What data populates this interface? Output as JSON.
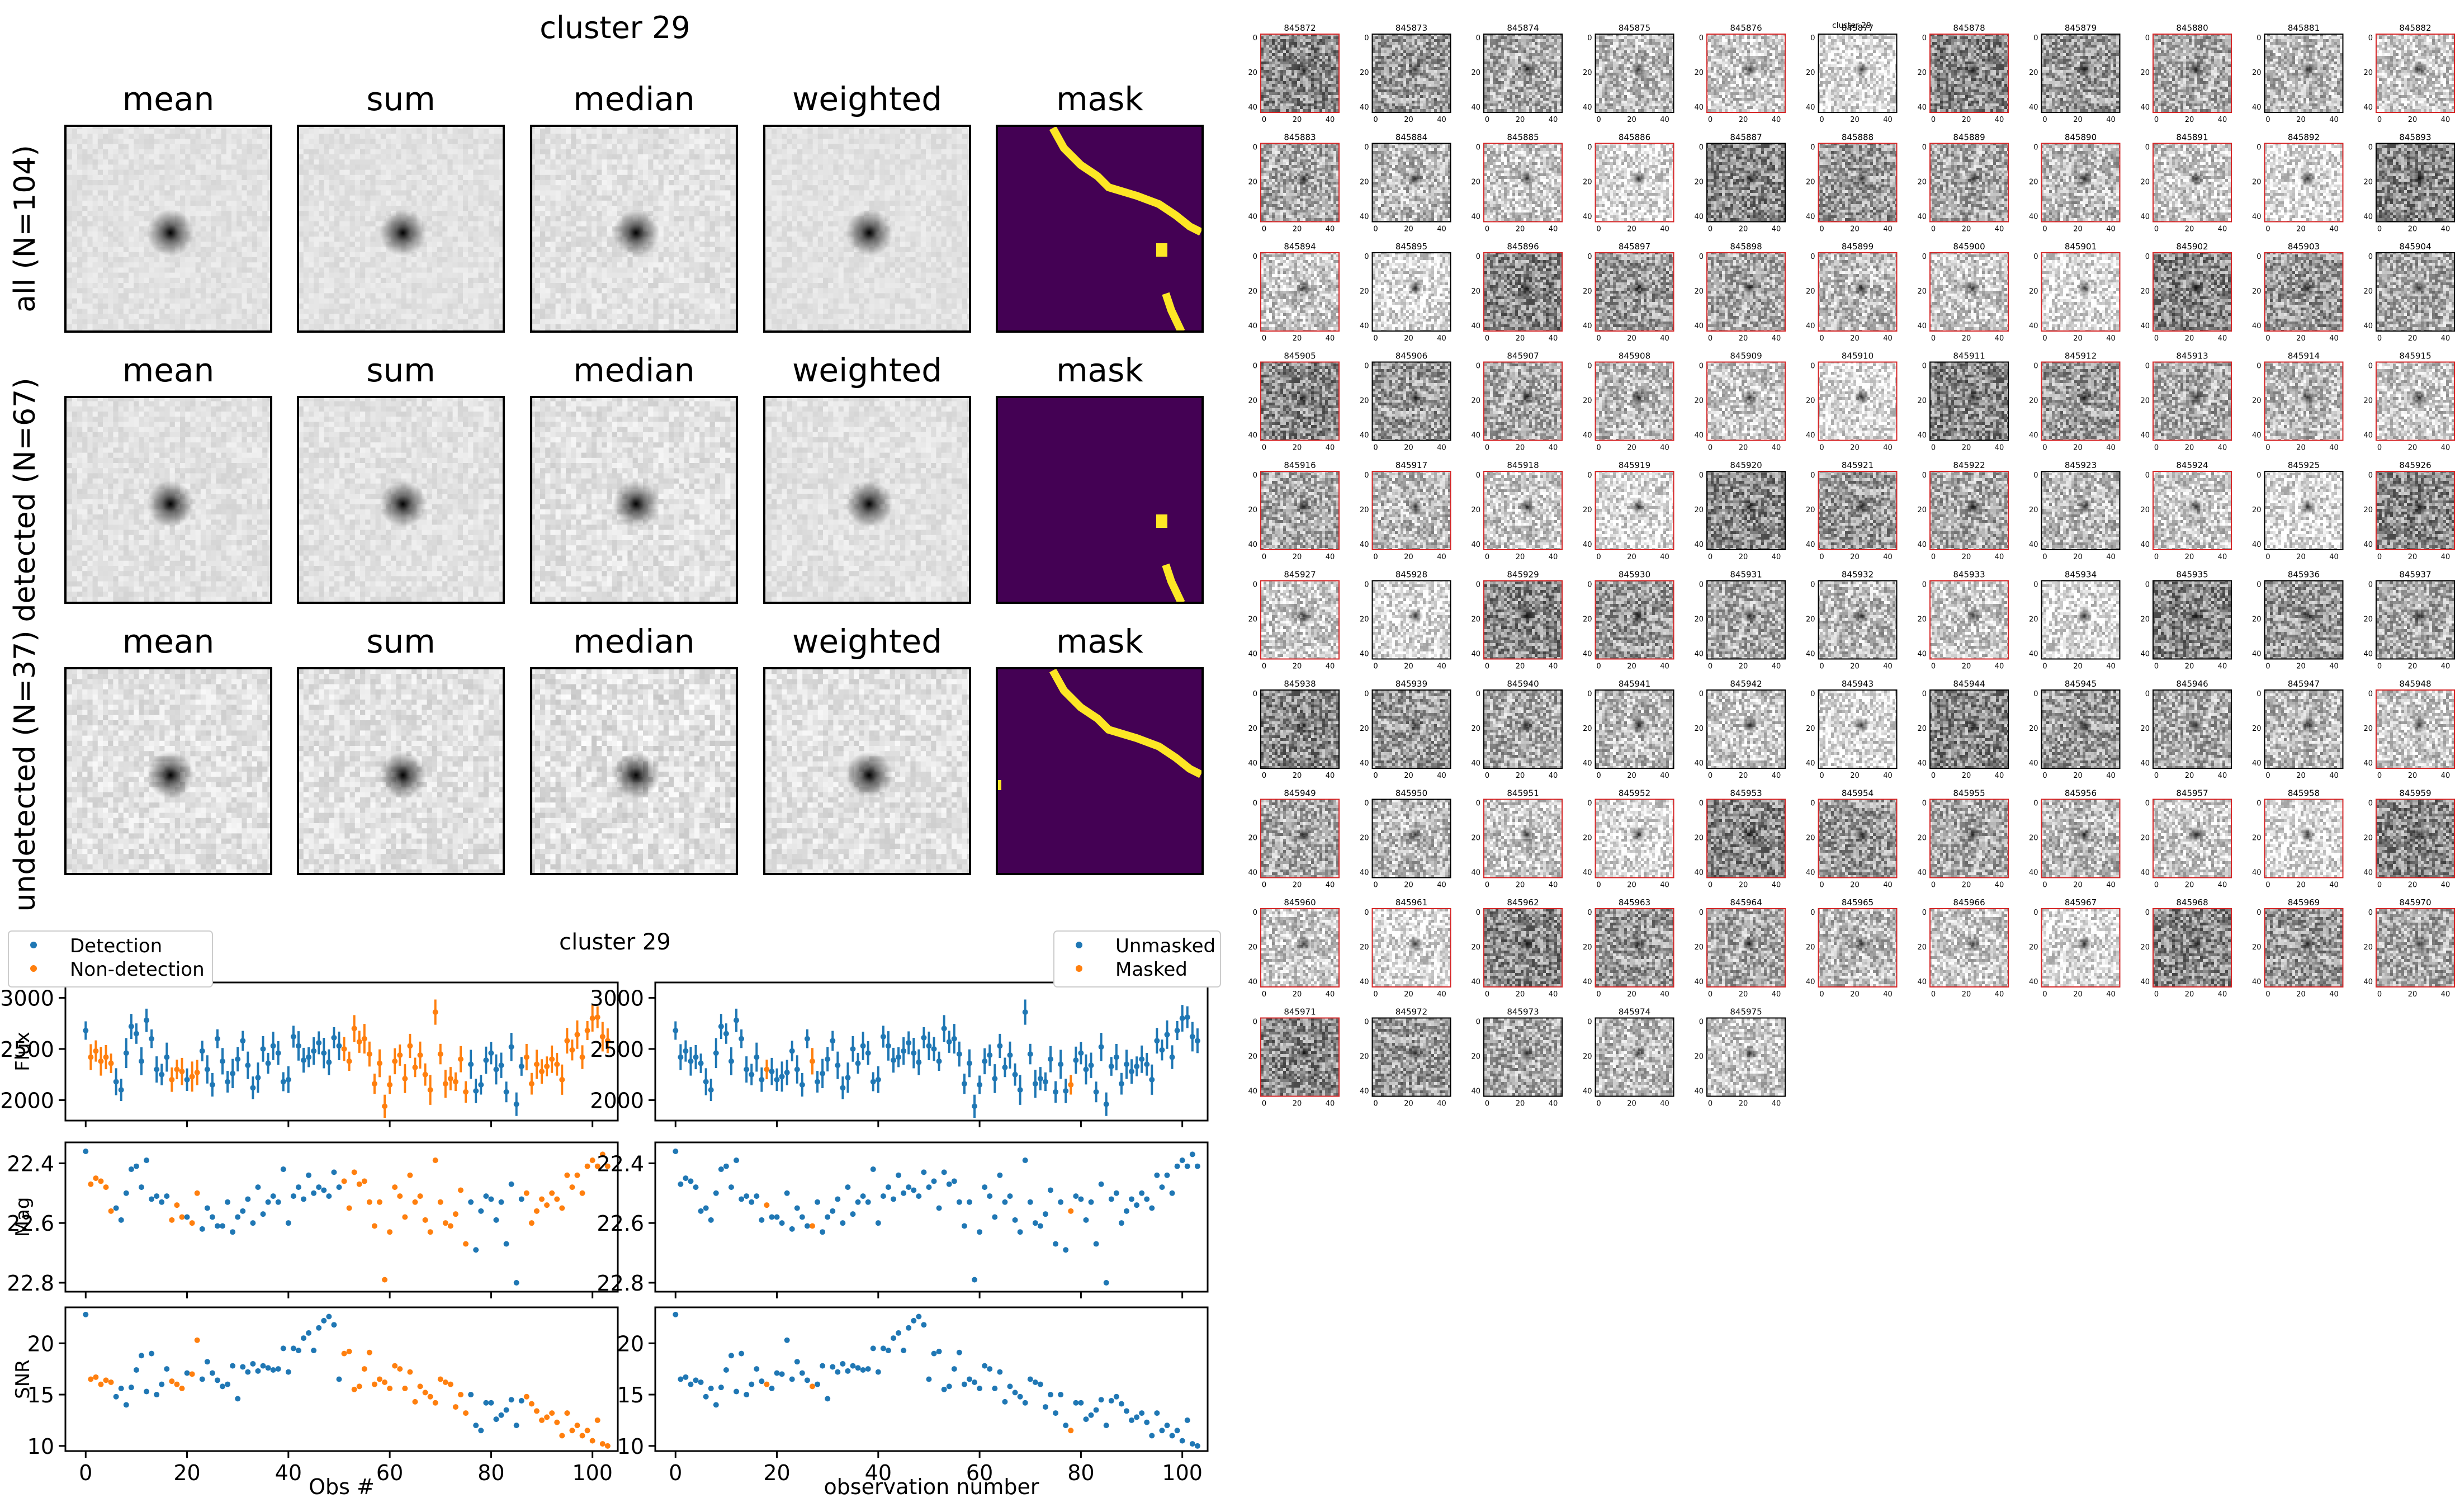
{
  "figure": {
    "cutout_title": "cluster 29",
    "lc_title": "cluster 29",
    "grid_title": "cluster 29",
    "stack_columns": [
      "mean",
      "sum",
      "median",
      "weighted",
      "mask"
    ],
    "stack_rows": [
      "all (N=104)",
      "detected (N=67)",
      "undetected (N=37)"
    ],
    "colors": {
      "detection": "#1f77b4",
      "non_detection": "#ff7f0e",
      "mask_background": "#440154",
      "mask_foreground": "#fde725",
      "thumb_frame_red": "#d62728"
    },
    "thumb_ids": [
      "845872",
      "845873",
      "845874",
      "845875",
      "845876",
      "845877",
      "845878",
      "845879",
      "845880",
      "845881",
      "845882",
      "845883",
      "845884",
      "845885",
      "845886",
      "845887",
      "845888",
      "845889",
      "845890",
      "845891",
      "845892",
      "845893",
      "845894",
      "845895",
      "845896",
      "845897",
      "845898",
      "845899",
      "845900",
      "845901",
      "845902",
      "845903",
      "845904",
      "845905",
      "845906",
      "845907",
      "845908",
      "845909",
      "845910",
      "845911",
      "845912",
      "845913",
      "845914",
      "845915",
      "845916",
      "845917",
      "845918",
      "845919",
      "845920",
      "845921",
      "845922",
      "845923",
      "845924",
      "845925",
      "845926",
      "845927",
      "845928",
      "845929",
      "845930",
      "845931",
      "845932",
      "845933",
      "845934",
      "845935",
      "845936",
      "845937",
      "845938",
      "845939",
      "845940",
      "845941",
      "845942",
      "845943",
      "845944",
      "845945",
      "845946",
      "845947",
      "845948",
      "845949",
      "845950",
      "845951",
      "845952",
      "845953",
      "845954",
      "845955",
      "845956",
      "845957",
      "845958",
      "845959",
      "845960",
      "845961",
      "845962",
      "845963",
      "845964",
      "845965",
      "845966",
      "845967",
      "845968",
      "845969",
      "845970",
      "845971",
      "845972",
      "845973",
      "845974",
      "845975"
    ],
    "thumb_red_frames": [
      0,
      4,
      6,
      8,
      10,
      11,
      13,
      14,
      16,
      17,
      18,
      19,
      20,
      22,
      24,
      25,
      26,
      27,
      28,
      29,
      30,
      31,
      33,
      35,
      36,
      37,
      38,
      40,
      41,
      42,
      43,
      44,
      45,
      46,
      47,
      49,
      50,
      52,
      54,
      55,
      57,
      58,
      61,
      76,
      77,
      79,
      80,
      81,
      82,
      83,
      84,
      85,
      86,
      87,
      88,
      89,
      90,
      91,
      92,
      93,
      94,
      95,
      96,
      97,
      98,
      99
    ],
    "thumb_tick_labels": {
      "x": [
        "0",
        "20",
        "40"
      ],
      "y": [
        "0",
        "20",
        "40"
      ]
    }
  },
  "chart_data": [
    {
      "type": "scatter",
      "panel": "left",
      "legend": [
        "Detection",
        "Non-detection"
      ],
      "legend_position": "top-left (outside)",
      "xlabel": "Obs #",
      "xlim": [
        -4,
        105
      ],
      "xticks": [
        "0",
        "20",
        "40",
        "60",
        "80",
        "100"
      ],
      "flux_ylabel": "Flux",
      "flux_ylim": [
        1800,
        3150
      ],
      "flux_yticks": [
        "2000",
        "2500",
        "3000"
      ],
      "mag_ylabel": "Mag",
      "mag_ylim": [
        22.83,
        22.33
      ],
      "mag_yticks": [
        "22.4",
        "22.6",
        "22.8"
      ],
      "snr_ylabel": "SNR",
      "snr_ylim": [
        9.5,
        23.5
      ],
      "snr_yticks": [
        "10",
        "15",
        "20"
      ],
      "category": "detected",
      "masked_x": [
        1,
        2,
        3,
        4,
        5,
        17,
        18,
        19,
        21,
        22,
        51,
        52,
        53,
        54,
        55,
        56,
        57,
        58,
        59,
        60,
        61,
        62,
        63,
        64,
        65,
        66,
        67,
        68,
        69,
        70,
        71,
        72,
        73,
        74,
        75,
        87,
        88,
        89,
        90,
        91,
        92,
        93,
        94,
        95,
        96,
        97,
        98,
        99,
        100,
        101,
        102,
        103
      ],
      "x": [
        0,
        1,
        2,
        3,
        4,
        5,
        6,
        7,
        8,
        9,
        10,
        11,
        12,
        13,
        14,
        15,
        16,
        17,
        18,
        19,
        20,
        21,
        22,
        23,
        24,
        25,
        26,
        27,
        28,
        29,
        30,
        31,
        32,
        33,
        34,
        35,
        36,
        37,
        38,
        39,
        40,
        41,
        42,
        43,
        44,
        45,
        46,
        47,
        48,
        49,
        50,
        51,
        52,
        53,
        54,
        55,
        56,
        57,
        58,
        59,
        60,
        61,
        62,
        63,
        64,
        65,
        66,
        67,
        68,
        69,
        70,
        71,
        72,
        73,
        74,
        75,
        76,
        77,
        78,
        79,
        80,
        81,
        82,
        83,
        84,
        85,
        86,
        87,
        88,
        89,
        90,
        91,
        92,
        93,
        94,
        95,
        96,
        97,
        98,
        99,
        100,
        101,
        102,
        103
      ],
      "flux": [
        2680,
        2420,
        2480,
        2380,
        2420,
        2360,
        2180,
        2100,
        2460,
        2720,
        2650,
        2380,
        2780,
        2600,
        2300,
        2250,
        2420,
        2200,
        2300,
        2280,
        2200,
        2230,
        2270,
        2480,
        2300,
        2150,
        2600,
        2380,
        2180,
        2260,
        2400,
        2580,
        2340,
        2120,
        2220,
        2500,
        2360,
        2530,
        2460,
        2180,
        2200,
        2620,
        2530,
        2390,
        2420,
        2480,
        2560,
        2460,
        2370,
        2610,
        2530,
        2500,
        2380,
        2700,
        2570,
        2600,
        2450,
        2160,
        2360,
        1940,
        2150,
        2380,
        2440,
        2210,
        2530,
        2320,
        2440,
        2250,
        2100,
        2860,
        2450,
        2160,
        2210,
        2180,
        2400,
        2080,
        2350,
        2090,
        2150,
        2390,
        2460,
        2300,
        2340,
        2080,
        2520,
        1960,
        2330,
        2420,
        2160,
        2350,
        2280,
        2330,
        2400,
        2350,
        2200,
        2580,
        2490,
        2640,
        2420,
        2680,
        2800,
        2810,
        2620,
        2580
      ],
      "mag": [
        22.36,
        22.47,
        22.45,
        22.46,
        22.48,
        22.56,
        22.55,
        22.59,
        22.5,
        22.42,
        22.41,
        22.48,
        22.39,
        22.52,
        22.51,
        22.53,
        22.51,
        22.59,
        22.54,
        22.58,
        22.58,
        22.6,
        22.5,
        22.62,
        22.55,
        22.58,
        22.61,
        22.61,
        22.53,
        22.63,
        22.58,
        22.56,
        22.52,
        22.6,
        22.48,
        22.57,
        22.53,
        22.51,
        22.53,
        22.42,
        22.6,
        22.51,
        22.48,
        22.52,
        22.44,
        22.5,
        22.48,
        22.49,
        22.51,
        22.43,
        22.48,
        22.46,
        22.55,
        22.43,
        22.47,
        22.46,
        22.53,
        22.61,
        22.53,
        22.79,
        22.63,
        22.48,
        22.51,
        22.58,
        22.44,
        22.53,
        22.51,
        22.59,
        22.63,
        22.39,
        22.53,
        22.6,
        22.61,
        22.57,
        22.49,
        22.67,
        22.53,
        22.69,
        22.56,
        22.51,
        22.52,
        22.59,
        22.53,
        22.67,
        22.47,
        22.8,
        22.52,
        22.5,
        22.6,
        22.56,
        22.52,
        22.54,
        22.5,
        22.52,
        22.55,
        22.44,
        22.48,
        22.44,
        22.5,
        22.41,
        22.39,
        22.41,
        22.37,
        22.41
      ],
      "snr": [
        22.8,
        16.5,
        16.7,
        16.0,
        16.4,
        16.2,
        14.8,
        15.6,
        14.0,
        15.7,
        17.4,
        18.8,
        15.3,
        19.0,
        15.0,
        16.0,
        17.5,
        16.3,
        16.0,
        15.6,
        17.1,
        17.0,
        20.3,
        16.5,
        18.2,
        17.1,
        16.4,
        15.8,
        16.0,
        17.8,
        14.6,
        17.7,
        17.2,
        18.0,
        17.3,
        17.8,
        17.6,
        17.4,
        17.5,
        19.5,
        17.2,
        19.5,
        19.3,
        20.5,
        21.0,
        19.3,
        21.5,
        22.2,
        22.6,
        21.8,
        16.5,
        19.0,
        19.2,
        15.5,
        15.8,
        17.5,
        19.1,
        16.0,
        16.5,
        16.2,
        15.6,
        17.8,
        17.5,
        15.6,
        17.2,
        14.3,
        15.8,
        15.2,
        14.8,
        14.2,
        16.5,
        16.2,
        16.0,
        13.8,
        15.0,
        13.2,
        15.0,
        12.0,
        11.5,
        14.2,
        14.2,
        12.6,
        13.0,
        13.5,
        14.5,
        12.0,
        14.4,
        14.8,
        14.1,
        13.4,
        12.5,
        12.8,
        13.2,
        12.3,
        11.0,
        13.2,
        11.5,
        12.0,
        11.0,
        11.5,
        10.5,
        12.5,
        10.2,
        10.0
      ]
    },
    {
      "type": "scatter",
      "panel": "right",
      "legend": [
        "Unmasked",
        "Masked"
      ],
      "legend_position": "top-right (outside)",
      "xlabel": "observation number",
      "xlim": [
        -4,
        105
      ],
      "masked_x": [
        18,
        27,
        78
      ],
      "note_series": "same observations as left panel, coloured by mask"
    }
  ]
}
